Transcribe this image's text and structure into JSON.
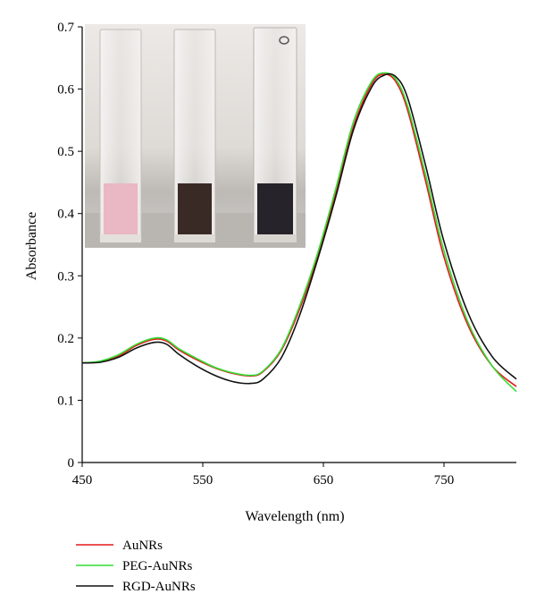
{
  "chart_data": {
    "type": "line",
    "title": "",
    "xlabel": "Wavelength (nm)",
    "ylabel": "Absorbance",
    "xlim": [
      450,
      810
    ],
    "ylim": [
      0,
      0.7
    ],
    "xticks": [
      450,
      550,
      650,
      750
    ],
    "yticks": [
      0,
      0.1,
      0.2,
      0.3,
      0.4,
      0.5,
      0.6,
      0.7
    ],
    "ytick_labels": [
      "0",
      "0.1",
      "0.2",
      "0.3",
      "0.4",
      "0.5",
      "0.6",
      "0.7"
    ],
    "grid": false,
    "legend_position": "bottom-left, below plot",
    "series": [
      {
        "name": "AuNRs",
        "color": "#e31a1c",
        "x": [
          450,
          465,
          480,
          495,
          510,
          520,
          530,
          545,
          560,
          575,
          590,
          600,
          615,
          630,
          645,
          660,
          675,
          690,
          700,
          710,
          720,
          735,
          750,
          770,
          790,
          810
        ],
        "y": [
          0.16,
          0.162,
          0.171,
          0.188,
          0.198,
          0.195,
          0.181,
          0.165,
          0.152,
          0.143,
          0.139,
          0.146,
          0.18,
          0.245,
          0.33,
          0.43,
          0.54,
          0.608,
          0.624,
          0.612,
          0.565,
          0.45,
          0.33,
          0.22,
          0.155,
          0.122
        ]
      },
      {
        "name": "PEG-AuNRs",
        "color": "#33dd33",
        "x": [
          450,
          465,
          480,
          495,
          510,
          520,
          530,
          545,
          560,
          575,
          590,
          600,
          615,
          630,
          645,
          660,
          675,
          690,
          700,
          710,
          720,
          735,
          750,
          770,
          790,
          810
        ],
        "y": [
          0.16,
          0.163,
          0.173,
          0.19,
          0.2,
          0.197,
          0.183,
          0.167,
          0.153,
          0.144,
          0.14,
          0.147,
          0.182,
          0.25,
          0.335,
          0.438,
          0.548,
          0.612,
          0.626,
          0.616,
          0.572,
          0.46,
          0.34,
          0.225,
          0.155,
          0.114
        ]
      },
      {
        "name": "RGD-AuNRs",
        "color": "#111111",
        "x": [
          450,
          465,
          480,
          495,
          510,
          520,
          530,
          545,
          560,
          575,
          590,
          600,
          615,
          630,
          645,
          660,
          675,
          690,
          700,
          710,
          720,
          735,
          750,
          770,
          790,
          810
        ],
        "y": [
          0.16,
          0.161,
          0.169,
          0.184,
          0.193,
          0.19,
          0.174,
          0.155,
          0.14,
          0.13,
          0.127,
          0.134,
          0.168,
          0.235,
          0.325,
          0.425,
          0.535,
          0.603,
          0.622,
          0.62,
          0.585,
          0.475,
          0.355,
          0.24,
          0.17,
          0.134
        ]
      }
    ]
  },
  "inset": {
    "description_icon": "cuvette-photo",
    "cuvettes": [
      {
        "liquid_color": "#eab7c4",
        "glass_color": "#e8e4e2"
      },
      {
        "liquid_color": "#3a2a26",
        "glass_color": "#dcd8d4"
      },
      {
        "liquid_color": "#26232a",
        "glass_color": "#d4d1ce"
      }
    ],
    "background_color": "#c8c6c2"
  }
}
